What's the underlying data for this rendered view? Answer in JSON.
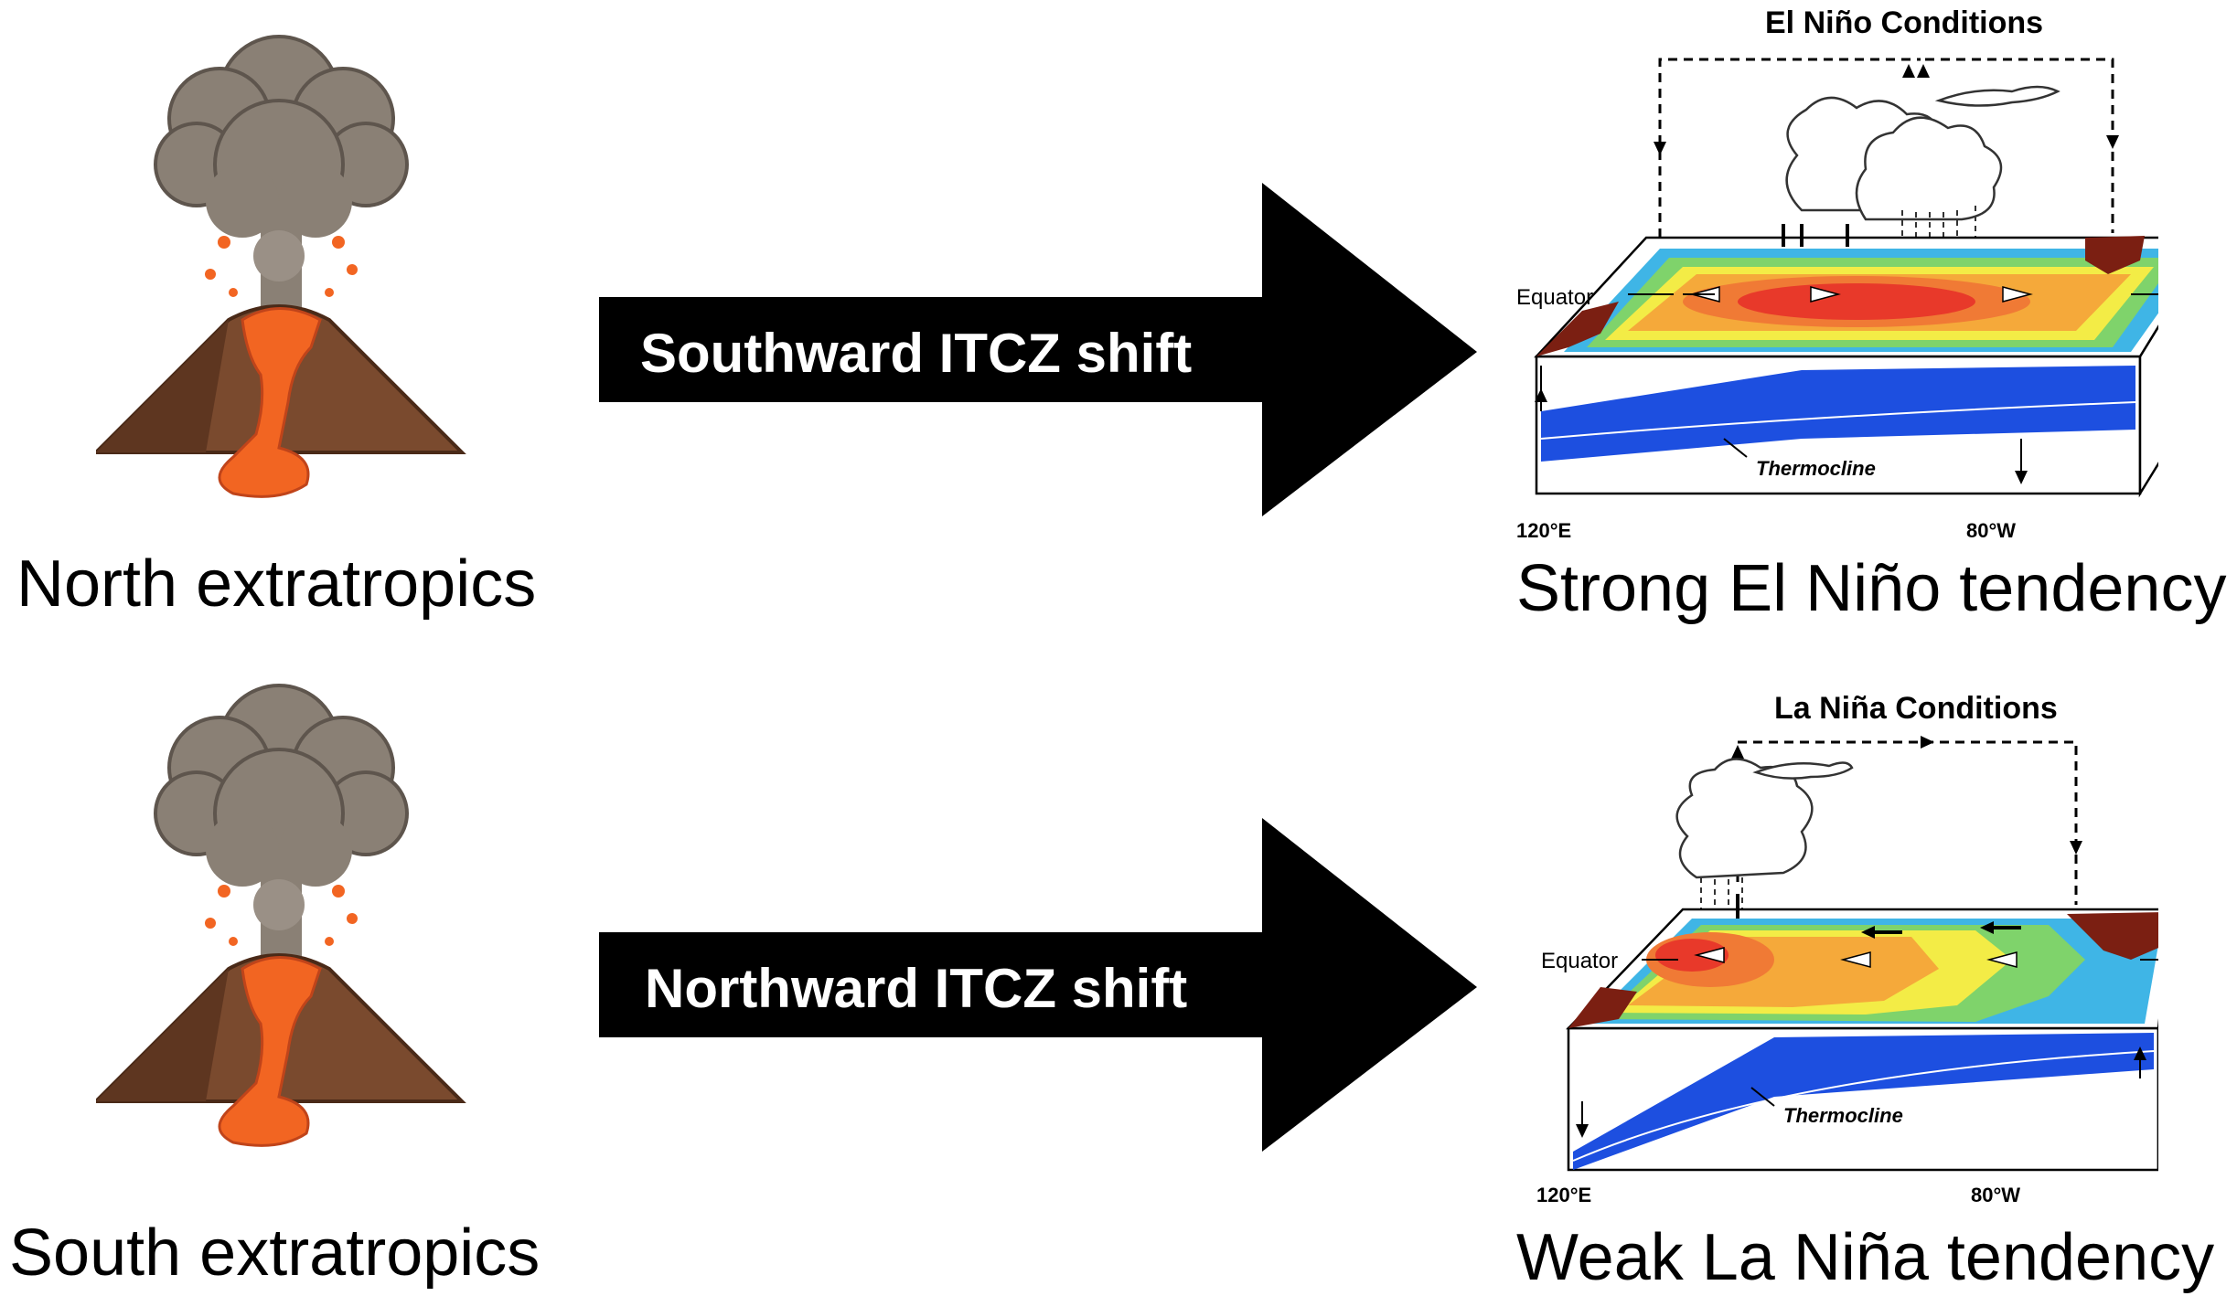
{
  "rows": [
    {
      "volcano_label": "North extratropics",
      "arrow_label": "Southward ITCZ shift",
      "panel": {
        "title": "El Niño Conditions",
        "equator_label": "Equator",
        "thermocline_label": "Thermocline",
        "west_label": "120°E",
        "east_label": "80°W"
      },
      "outcome_label": "Strong El Niño tendency"
    },
    {
      "volcano_label": "South extratropics",
      "arrow_label": "Northward ITCZ shift",
      "panel": {
        "title": "La Niña Conditions",
        "equator_label": "Equator",
        "thermocline_label": "Thermocline",
        "west_label": "120°E",
        "east_label": "80°W"
      },
      "outcome_label": "Weak La Niña tendency"
    }
  ],
  "colors": {
    "arrow": "#000000",
    "ash": "#8a8075",
    "lava": "#f26522",
    "mountain": "#7a4a2e",
    "ocean_deep": "#1d4fe0",
    "warm": "#e8392a",
    "cool": "#3fb5e6",
    "land": "#7b1f12"
  }
}
